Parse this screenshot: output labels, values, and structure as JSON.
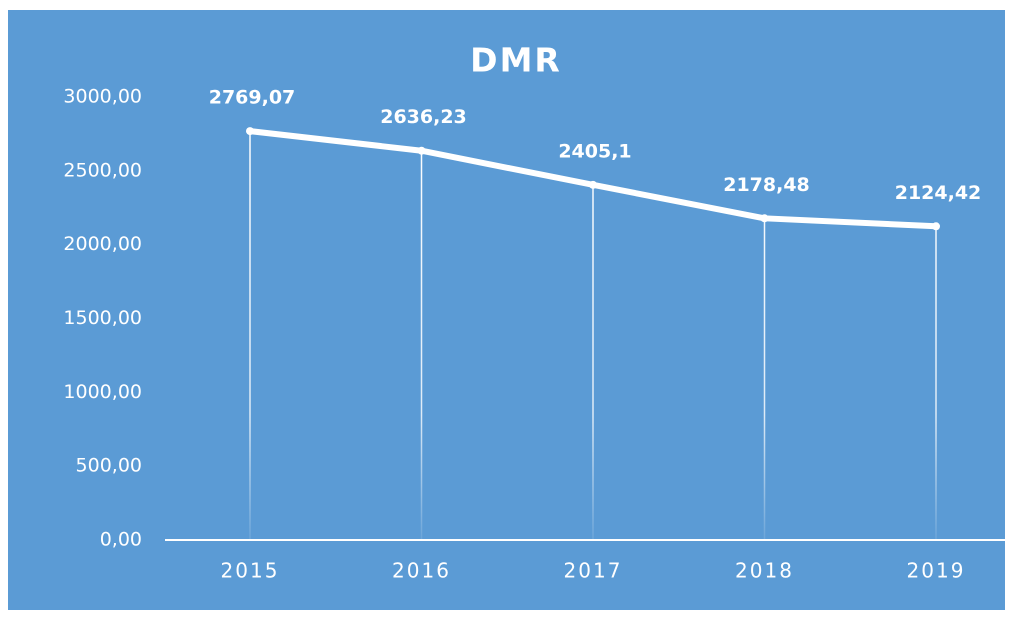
{
  "chart_data": {
    "type": "line",
    "title": "DMR",
    "categories": [
      "2015",
      "2016",
      "2017",
      "2018",
      "2019"
    ],
    "values": [
      2769.07,
      2636.23,
      2405.1,
      2178.48,
      2124.42
    ],
    "value_labels": [
      "2769,07",
      "2636,23",
      "2405,1",
      "2178,48",
      "2124,42"
    ],
    "color": "#ffffff",
    "ylim": [
      0,
      3000
    ],
    "yticks": [
      {
        "value": 0,
        "label": "0,00"
      },
      {
        "value": 500,
        "label": "500,00"
      },
      {
        "value": 1000,
        "label": "1000,00"
      },
      {
        "value": 1500,
        "label": "1500,00"
      },
      {
        "value": 2000,
        "label": "2000,00"
      },
      {
        "value": 2500,
        "label": "2500,00"
      },
      {
        "value": 3000,
        "label": "3000,00"
      }
    ],
    "grid": false
  }
}
